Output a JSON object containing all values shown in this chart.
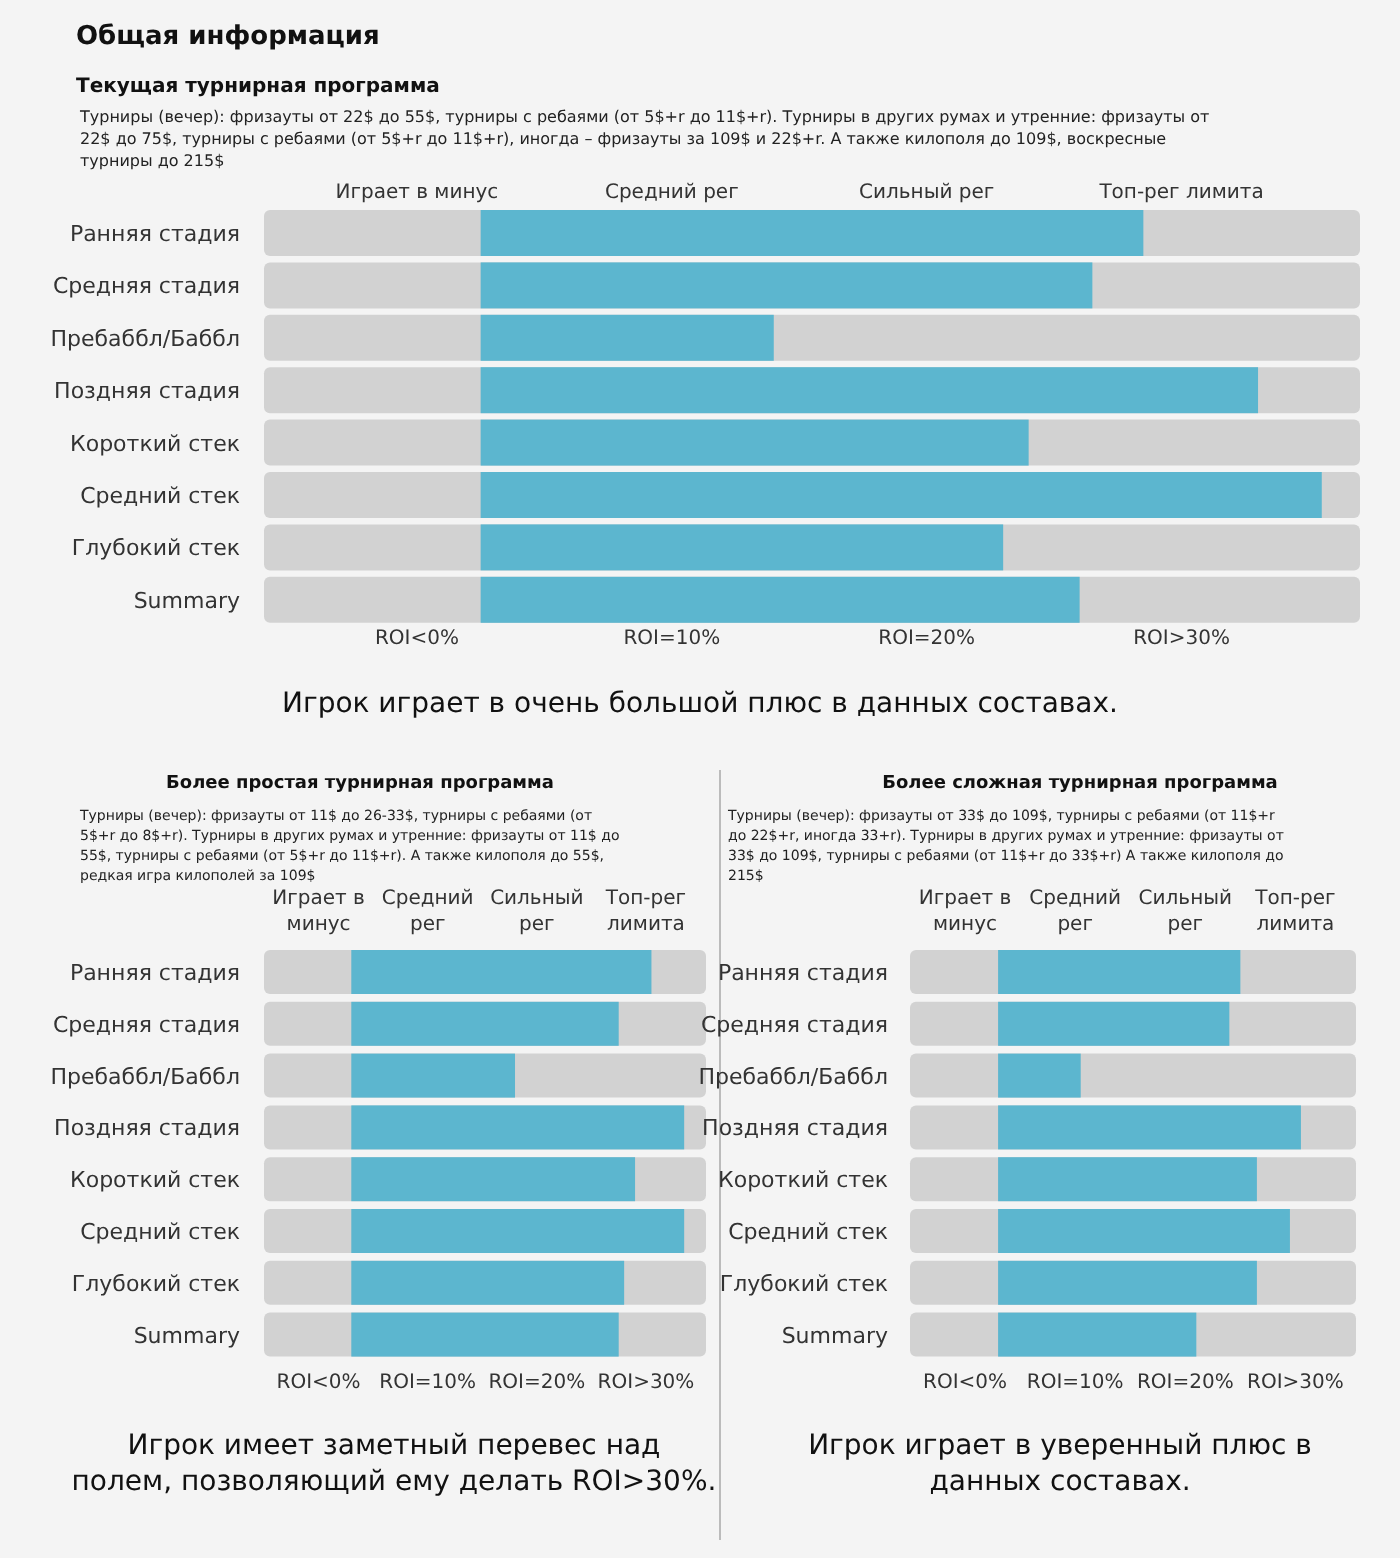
{
  "chart_data": [
    {
      "type": "bar",
      "orientation": "horizontal",
      "title": "Общая информация",
      "subtitle": "Текущая турнирная программа",
      "categories": [
        "Ранняя стадия",
        "Средняя стадия",
        "Пребаббл/Баббл",
        "Поздняя стадия",
        "Короткий стек",
        "Средний стек",
        "Глубокий стек",
        "Summary"
      ],
      "base": [
        2.5,
        2.5,
        2.5,
        2.5,
        2.5,
        2.5,
        2.5,
        2.5
      ],
      "values": [
        26,
        24,
        11.5,
        30.5,
        21.5,
        33,
        20.5,
        23.5
      ],
      "color": "#5cb6cf",
      "xlim": [
        -6,
        37
      ],
      "xticks": [
        {
          "value": 0,
          "label": "ROI<0%"
        },
        {
          "value": 10,
          "label": "ROI=10%"
        },
        {
          "value": 20,
          "label": "ROI=20%"
        },
        {
          "value": 30,
          "label": "ROI>30%"
        }
      ],
      "annotations": [
        "Турниры (вечер): фризауты от 22$ до 55$, турниры с ребаями (от 5$+r до 11$+r). Турниры в других румах и утренние: фризауты от 22$ до 75$, турниры с ребаями (от 5$+r до 11$+r), иногда – фризауты за 109$ и 22$+r. А также килополя до 109$, воскресные турниры до 215$",
        "Игрок играет в очень большой плюс в данных составах.",
        "Играет в минус",
        "Средний рег",
        "Сильный рег",
        "Топ-рег лимита"
      ]
    },
    {
      "type": "bar",
      "orientation": "horizontal",
      "title": "Более простая турнирная программа",
      "categories": [
        "Ранняя стадия",
        "Средняя стадия",
        "Пребаббл/Баббл",
        "Поздняя стадия",
        "Короткий стек",
        "Средний стек",
        "Глубокий стек",
        "Summary"
      ],
      "base": [
        3,
        3,
        3,
        3,
        3,
        3,
        3,
        3
      ],
      "values": [
        27.5,
        24.5,
        15,
        30.5,
        26,
        30.5,
        25,
        24.5
      ],
      "color": "#5cb6cf",
      "xlim": [
        -5,
        35.5
      ],
      "xticks": [
        {
          "value": 0,
          "label": "ROI<0%"
        },
        {
          "value": 10,
          "label": "ROI=10%"
        },
        {
          "value": 20,
          "label": "ROI=20%"
        },
        {
          "value": 30,
          "label": "ROI>30%"
        }
      ],
      "annotations": [
        "Турниры (вечер): фризауты от 11$ до 26-33$, турниры с ребаями (от 5$+r до 8$+r). Турниры в других румах и утренние: фризауты от 11$ до 55$, турниры с ребаями (от 5$+r до 11$+r). А также килополя до 55$, редкая игра килополей за 109$",
        "Игрок имеет заметный перевес над полем, позволяющий ему делать ROI>30%.",
        "Играет в минус",
        "Средний рег",
        "Сильный рег",
        "Топ-рег лимита"
      ]
    },
    {
      "type": "bar",
      "orientation": "horizontal",
      "title": "Более сложная турнирная программа",
      "categories": [
        "Ранняя стадия",
        "Средняя стадия",
        "Пребаббл/Баббл",
        "Поздняя стадия",
        "Короткий стек",
        "Средний стек",
        "Глубокий стек",
        "Summary"
      ],
      "base": [
        3,
        3,
        3,
        3,
        3,
        3,
        3,
        3
      ],
      "values": [
        22,
        21,
        7.5,
        27.5,
        23.5,
        26.5,
        23.5,
        18
      ],
      "color": "#5cb6cf",
      "xlim": [
        -5,
        35.5
      ],
      "xticks": [
        {
          "value": 0,
          "label": "ROI<0%"
        },
        {
          "value": 10,
          "label": "ROI=10%"
        },
        {
          "value": 20,
          "label": "ROI=20%"
        },
        {
          "value": 30,
          "label": "ROI>30%"
        }
      ],
      "annotations": [
        "Турниры (вечер): фризауты от 33$ до 109$, турниры с ребаями (от 11$+r до 22$+r, иногда 33+r). Турниры в других румах и утренние: фризауты от 33$ до 109$, турниры с ребаями (от 11$+r до 33$+r) А также килополя до 215$",
        "Игрок играет в уверенный плюс в данных составах.",
        "Играет в минус",
        "Средний рег",
        "Сильный рег",
        "Топ-рег лимита"
      ]
    }
  ]
}
